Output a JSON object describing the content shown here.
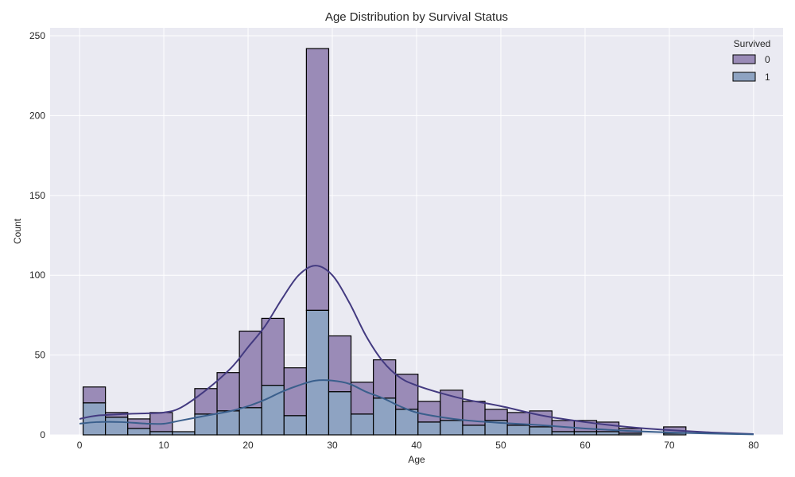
{
  "chart_data": {
    "type": "histogram",
    "title": "Age Distribution by Survival Status",
    "xlabel": "Age",
    "ylabel": "Count",
    "xlim": [
      -3.5,
      83.5
    ],
    "ylim": [
      0,
      255
    ],
    "xticks": [
      0,
      10,
      20,
      30,
      40,
      50,
      60,
      70,
      80
    ],
    "yticks": [
      0,
      50,
      100,
      150,
      200,
      250
    ],
    "grid": true,
    "stacked": true,
    "legend": {
      "title": "Survived",
      "placement": "top-right",
      "entries": [
        "0",
        "1"
      ]
    },
    "bin_edges": [
      0.42,
      3.07,
      5.72,
      8.37,
      11.02,
      13.67,
      16.32,
      18.97,
      21.62,
      24.27,
      26.92,
      29.57,
      32.22,
      34.87,
      37.52,
      40.17,
      42.82,
      45.47,
      48.12,
      50.77,
      53.42,
      56.07,
      58.72,
      61.37,
      64.02,
      66.67,
      69.32,
      71.97
    ],
    "series": [
      {
        "name": "0",
        "color": "#9a8bb7",
        "kde_color": "#433a80",
        "values": [
          10,
          3,
          6,
          12,
          0,
          16,
          24,
          48,
          42,
          30,
          164,
          35,
          20,
          24,
          22,
          13,
          19,
          15,
          7,
          8,
          10,
          7,
          7,
          6,
          3,
          0,
          4
        ]
      },
      {
        "name": "1",
        "color": "#8ea3c2",
        "kde_color": "#3a5f8c",
        "values": [
          20,
          11,
          4,
          2,
          2,
          13,
          15,
          17,
          31,
          12,
          78,
          27,
          13,
          23,
          16,
          8,
          9,
          6,
          9,
          6,
          5,
          2,
          2,
          2,
          1,
          0,
          1
        ]
      }
    ],
    "kde": [
      {
        "name": "0",
        "x": [
          0,
          2,
          5,
          8,
          10,
          12,
          15,
          18,
          20,
          22,
          24,
          26,
          28,
          30,
          32,
          34,
          36,
          38,
          40,
          43,
          46,
          50,
          55,
          60,
          65,
          70,
          75,
          80
        ],
        "y": [
          10,
          12,
          13,
          13.5,
          14,
          17,
          28,
          42,
          55,
          68,
          85,
          100,
          106,
          100,
          83,
          62,
          46,
          36,
          31,
          26,
          22,
          18,
          12,
          8,
          5,
          3,
          1.5,
          0.5
        ]
      },
      {
        "name": "1",
        "x": [
          0,
          2,
          5,
          8,
          10,
          12,
          15,
          18,
          20,
          22,
          24,
          26,
          28,
          30,
          32,
          34,
          36,
          38,
          40,
          43,
          46,
          50,
          55,
          60,
          65,
          70,
          75,
          80
        ],
        "y": [
          7,
          8,
          8,
          7,
          7,
          9,
          12,
          15,
          18,
          22,
          27,
          31,
          34,
          34,
          32,
          27,
          23,
          18,
          14,
          11,
          9,
          7.5,
          6,
          4,
          2.5,
          1.5,
          0.8,
          0.3
        ]
      }
    ]
  }
}
